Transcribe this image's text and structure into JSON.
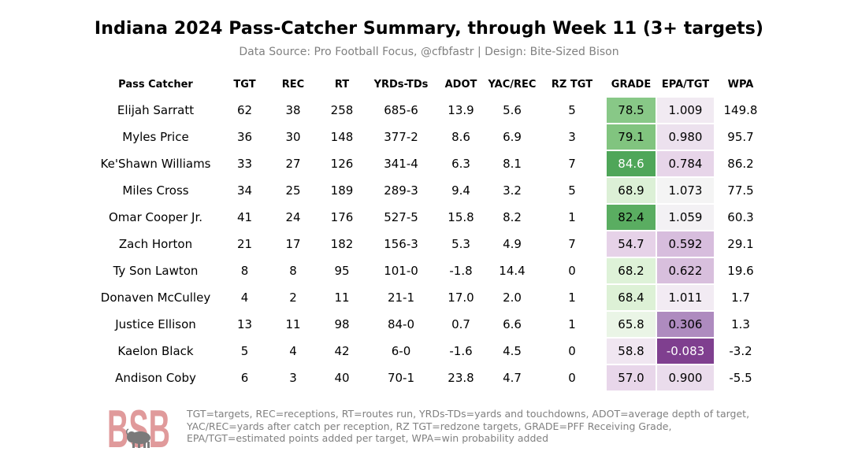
{
  "header": {
    "title": "Indiana 2024 Pass-Catcher Summary, through Week 11 (3+ targets)",
    "subtitle": "Data Source: Pro Football Focus, @cfbfastr | Design: Bite-Sized Bison"
  },
  "chart_data": {
    "type": "table",
    "columns": [
      "Pass Catcher",
      "TGT",
      "REC",
      "RT",
      "YRDs-TDs",
      "ADOT",
      "YAC/REC",
      "RZ TGT",
      "GRADE",
      "EPA/TGT",
      "WPA"
    ],
    "rows": [
      [
        "Elijah Sarratt",
        "62",
        "38",
        "258",
        "685-6",
        "13.9",
        "5.6",
        "5",
        "78.5",
        "1.009",
        "149.8"
      ],
      [
        "Myles Price",
        "36",
        "30",
        "148",
        "377-2",
        "8.6",
        "6.9",
        "3",
        "79.1",
        "0.980",
        "95.7"
      ],
      [
        "Ke'Shawn Williams",
        "33",
        "27",
        "126",
        "341-4",
        "6.3",
        "8.1",
        "7",
        "84.6",
        "0.784",
        "86.2"
      ],
      [
        "Miles Cross",
        "34",
        "25",
        "189",
        "289-3",
        "9.4",
        "3.2",
        "5",
        "68.9",
        "1.073",
        "77.5"
      ],
      [
        "Omar Cooper Jr.",
        "41",
        "24",
        "176",
        "527-5",
        "15.8",
        "8.2",
        "1",
        "82.4",
        "1.059",
        "60.3"
      ],
      [
        "Zach Horton",
        "21",
        "17",
        "182",
        "156-3",
        "5.3",
        "4.9",
        "7",
        "54.7",
        "0.592",
        "29.1"
      ],
      [
        "Ty Son Lawton",
        "8",
        "8",
        "95",
        "101-0",
        "-1.8",
        "14.4",
        "0",
        "68.2",
        "0.622",
        "19.6"
      ],
      [
        "Donaven McCulley",
        "4",
        "2",
        "11",
        "21-1",
        "17.0",
        "2.0",
        "1",
        "68.4",
        "1.011",
        "1.7"
      ],
      [
        "Justice Ellison",
        "13",
        "11",
        "98",
        "84-0",
        "0.7",
        "6.6",
        "1",
        "65.8",
        "0.306",
        "1.3"
      ],
      [
        "Kaelon Black",
        "5",
        "4",
        "42",
        "6-0",
        "-1.6",
        "4.5",
        "0",
        "58.8",
        "-0.083",
        "-3.2"
      ],
      [
        "Andison Coby",
        "6",
        "3",
        "40",
        "70-1",
        "23.8",
        "4.7",
        "0",
        "57.0",
        "0.900",
        "-5.5"
      ]
    ],
    "color_columns": [
      "GRADE",
      "EPA/TGT"
    ],
    "colormap": "PRGn (purple = low, green = high)"
  },
  "colors": {
    "grade": [
      "#88c887",
      "#81c47f",
      "#4fa659",
      "#dcf0d6",
      "#5aad61",
      "#e6d2e8",
      "#def2d8",
      "#ddf1d6",
      "#eaf5e6",
      "#f0e6f1",
      "#e8d6ea"
    ],
    "epa": [
      "#f1eaf2",
      "#ece1ee",
      "#e7d5e9",
      "#f4f4f4",
      "#f3f1f4",
      "#d7bddd",
      "#d8bfdd",
      "#f2ebf3",
      "#ae8bbf",
      "#7f3f8f",
      "#eadcec"
    ],
    "grade_text": [
      "#000000",
      "#000000",
      "#ffffff",
      "#000000",
      "#000000",
      "#000000",
      "#000000",
      "#000000",
      "#000000",
      "#000000",
      "#000000"
    ],
    "epa_text": [
      "#000000",
      "#000000",
      "#000000",
      "#000000",
      "#000000",
      "#000000",
      "#000000",
      "#000000",
      "#000000",
      "#ffffff",
      "#000000"
    ]
  },
  "logo": {
    "text": "BSB",
    "icon": "bison-icon",
    "color": "#e09a9b"
  },
  "footnote": {
    "lines": [
      "TGT=targets, REC=receptions, RT=routes run, YRDs-TDs=yards and touchdowns, ADOT=average depth of target,",
      "YAC/REC=yards after catch per reception, RZ TGT=redzone targets, GRADE=PFF Receiving Grade,",
      "EPA/TGT=estimated points added per target, WPA=win probability added"
    ]
  }
}
